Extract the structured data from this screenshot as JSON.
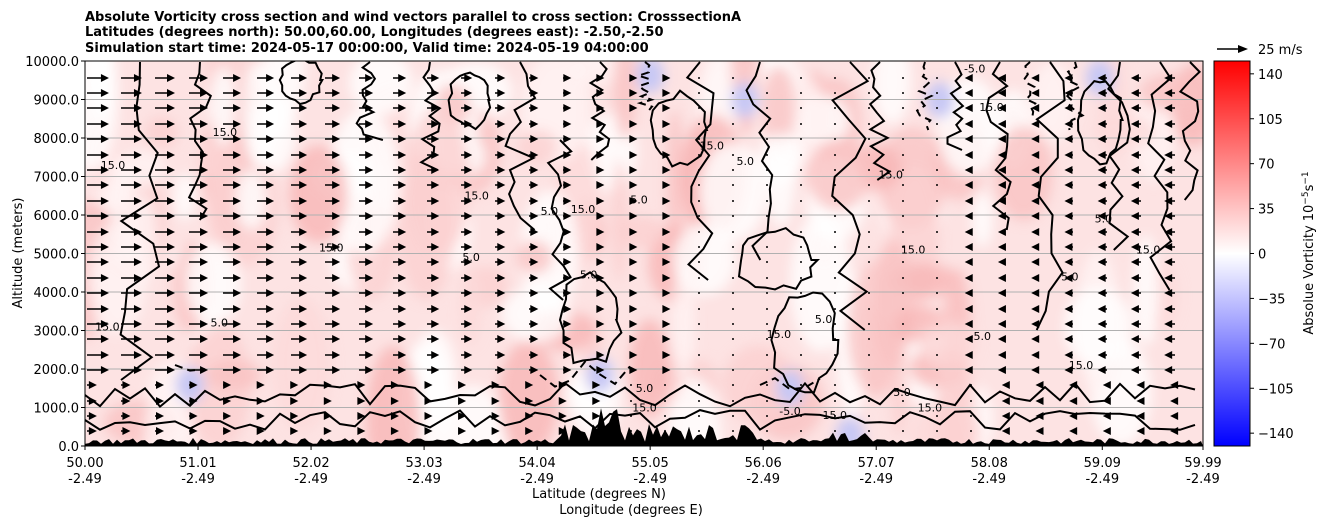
{
  "chart_data": {
    "type": "heatmap",
    "title_lines": [
      "Absolute Vorticity cross section and wind vectors parallel to cross section: CrosssectionA",
      "Latitudes (degrees north): 50.00,60.00, Longitudes (degrees east): -2.50,-2.50",
      "Simulation start time: 2024-05-17 00:00:00, Valid time: 2024-05-19 04:00:00"
    ],
    "xlabel_lines": [
      "Latitude (degrees N)",
      "Longitude (degrees E)"
    ],
    "ylabel": "Altitude (meters)",
    "x_range": [
      50.0,
      59.99
    ],
    "ylim": [
      0,
      10000
    ],
    "grid": "horizontal",
    "x_ticks": [
      {
        "lat": "50.00",
        "lon": "-2.49",
        "value": 50.0
      },
      {
        "lat": "51.01",
        "lon": "-2.49",
        "value": 51.01
      },
      {
        "lat": "52.02",
        "lon": "-2.49",
        "value": 52.02
      },
      {
        "lat": "53.03",
        "lon": "-2.49",
        "value": 53.03
      },
      {
        "lat": "54.04",
        "lon": "-2.49",
        "value": 54.04
      },
      {
        "lat": "55.05",
        "lon": "-2.49",
        "value": 55.05
      },
      {
        "lat": "56.06",
        "lon": "-2.49",
        "value": 56.06
      },
      {
        "lat": "57.07",
        "lon": "-2.49",
        "value": 57.07
      },
      {
        "lat": "58.08",
        "lon": "-2.49",
        "value": 58.08
      },
      {
        "lat": "59.09",
        "lon": "-2.49",
        "value": 59.09
      },
      {
        "lat": "59.99",
        "lon": "-2.49",
        "value": 59.99
      }
    ],
    "y_ticks": [
      {
        "label": "0.0",
        "value": 0
      },
      {
        "label": "1000.0",
        "value": 1000
      },
      {
        "label": "2000.0",
        "value": 2000
      },
      {
        "label": "3000.0",
        "value": 3000
      },
      {
        "label": "4000.0",
        "value": 4000
      },
      {
        "label": "5000.0",
        "value": 5000
      },
      {
        "label": "6000.0",
        "value": 6000
      },
      {
        "label": "7000.0",
        "value": 7000
      },
      {
        "label": "8000.0",
        "value": 8000
      },
      {
        "label": "9000.0",
        "value": 9000
      },
      {
        "label": "10000.0",
        "value": 10000
      }
    ],
    "colorbar": {
      "label": "Absolue Vorticity 10",
      "label_exp": "−5",
      "label_unit": "s",
      "label_unit_exp": "−1",
      "range": [
        -150,
        150
      ],
      "ticks": [
        {
          "label": "140",
          "value": 140
        },
        {
          "label": "105",
          "value": 105
        },
        {
          "label": "70",
          "value": 70
        },
        {
          "label": "35",
          "value": 35
        },
        {
          "label": "0",
          "value": 0
        },
        {
          "label": "−35",
          "value": -35
        },
        {
          "label": "−70",
          "value": -70
        },
        {
          "label": "−105",
          "value": -105
        },
        {
          "label": "−140",
          "value": -140
        }
      ],
      "colors": {
        "low": "#0000ff",
        "mid": "#ffffff",
        "high": "#ff0000"
      }
    },
    "quiver_key": "25 m/s",
    "contour_levels": [
      "-5.0",
      "5.0",
      "15.0"
    ],
    "contour_labels": [
      {
        "text": "15.0",
        "x": 51.25,
        "y": 8050
      },
      {
        "text": "15.0",
        "x": 52.2,
        "y": 5050
      },
      {
        "text": "15.0",
        "x": 53.5,
        "y": 6400
      },
      {
        "text": "5.0",
        "x": 53.45,
        "y": 4800
      },
      {
        "text": "15.0",
        "x": 54.45,
        "y": 6050
      },
      {
        "text": "5.0",
        "x": 54.15,
        "y": 6000
      },
      {
        "text": "5.0",
        "x": 54.5,
        "y": 4350
      },
      {
        "text": "5.0",
        "x": 54.95,
        "y": 6300
      },
      {
        "text": "15.0",
        "x": 55.6,
        "y": 7700
      },
      {
        "text": "5.0",
        "x": 55.9,
        "y": 7300
      },
      {
        "text": "15.0",
        "x": 57.2,
        "y": 6950
      },
      {
        "text": "15.0",
        "x": 57.4,
        "y": 5000
      },
      {
        "text": "5.0",
        "x": 56.6,
        "y": 3200
      },
      {
        "text": "15.0",
        "x": 56.2,
        "y": 2800
      },
      {
        "text": "-5.0",
        "x": 58.0,
        "y": 2750
      },
      {
        "text": "15.0",
        "x": 58.9,
        "y": 2000
      },
      {
        "text": "5.0",
        "x": 58.8,
        "y": 4300
      },
      {
        "text": "15.0",
        "x": 59.5,
        "y": 5000
      },
      {
        "text": "5.0",
        "x": 59.1,
        "y": 5800
      },
      {
        "text": "-5.0",
        "x": 57.95,
        "y": 9700
      },
      {
        "text": "15.0",
        "x": 58.1,
        "y": 8700
      },
      {
        "text": "5.0",
        "x": 51.2,
        "y": 3100
      },
      {
        "text": "15.0",
        "x": 50.25,
        "y": 7200
      },
      {
        "text": "15.0",
        "x": 50.2,
        "y": 3000
      },
      {
        "text": "-5.0",
        "x": 56.3,
        "y": 800
      },
      {
        "text": "15.0",
        "x": 56.7,
        "y": 700
      },
      {
        "text": "5.0",
        "x": 57.3,
        "y": 1300
      },
      {
        "text": "15.0",
        "x": 57.55,
        "y": 900
      },
      {
        "text": "15.0",
        "x": 55.0,
        "y": 900
      },
      {
        "text": "5.0",
        "x": 55.0,
        "y": 1400
      }
    ],
    "wind": "horizontal vectors; eastward (rightward) below ~55.2°N decreasing northward, westward (leftward) beyond ~57.8°N"
  }
}
